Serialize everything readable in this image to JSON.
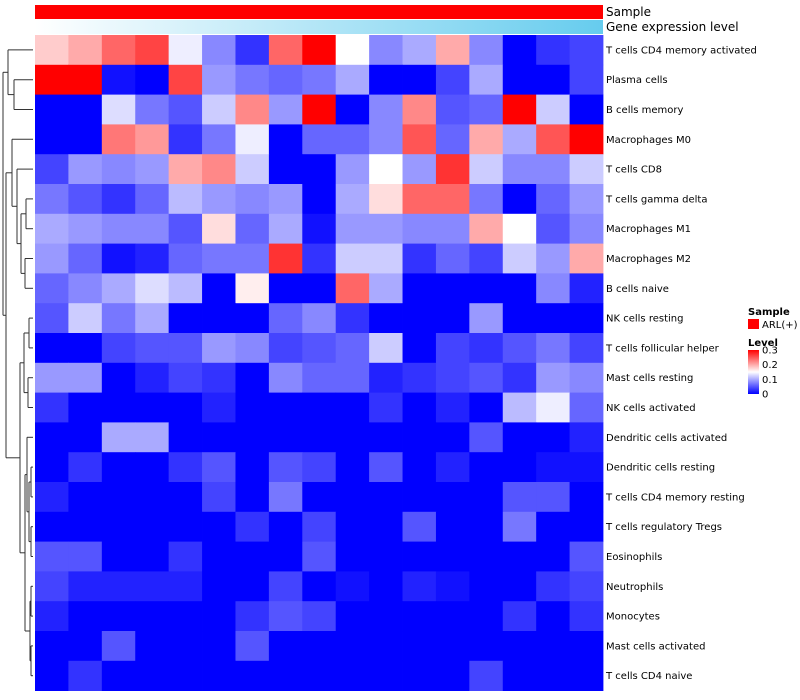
{
  "chart_data": {
    "type": "heatmap",
    "annotations": [
      {
        "name": "Sample",
        "kind": "categorical",
        "color": "#FF0000"
      },
      {
        "name": "Gene expression level",
        "kind": "gradient",
        "low_color": "#FFFFFF",
        "high_color": "#66CCEE"
      }
    ],
    "rows": [
      "T cells CD4 memory activated",
      "Plasma cells",
      "B cells memory",
      "Macrophages M0",
      "T cells CD8",
      "T cells gamma delta",
      "Macrophages M1",
      "Macrophages M2",
      "B cells naive",
      "NK cells resting",
      "T cells follicular helper",
      "Mast cells resting",
      "NK cells activated",
      "Dendritic cells activated",
      "Dendritic cells resting",
      "T cells CD4 memory resting",
      "T cells regulatory  Tregs",
      "Eosinophils",
      "Neutrophils",
      "Monocytes",
      "Mast cells activated",
      "T cells CD4 naive"
    ],
    "n_columns": 17,
    "values": [
      [
        0.18,
        0.2,
        0.24,
        0.26,
        0.14,
        0.08,
        0.03,
        0.24,
        0.3,
        0.15,
        0.08,
        0.1,
        0.2,
        0.08,
        0.0,
        0.03,
        0.04
      ],
      [
        0.3,
        0.3,
        0.01,
        0.0,
        0.26,
        0.09,
        0.07,
        0.06,
        0.07,
        0.1,
        0.0,
        0.0,
        0.04,
        0.1,
        0.0,
        0.0,
        0.04
      ],
      [
        0.0,
        0.0,
        0.13,
        0.07,
        0.05,
        0.12,
        0.22,
        0.09,
        0.3,
        0.0,
        0.08,
        0.22,
        0.05,
        0.06,
        0.3,
        0.12,
        0.0
      ],
      [
        0.0,
        0.0,
        0.23,
        0.21,
        0.03,
        0.07,
        0.14,
        0.0,
        0.06,
        0.06,
        0.08,
        0.25,
        0.06,
        0.2,
        0.1,
        0.25,
        0.3
      ],
      [
        0.04,
        0.09,
        0.08,
        0.09,
        0.2,
        0.22,
        0.12,
        0.0,
        0.0,
        0.09,
        0.15,
        0.09,
        0.27,
        0.12,
        0.08,
        0.08,
        0.12
      ],
      [
        0.07,
        0.05,
        0.03,
        0.06,
        0.11,
        0.09,
        0.08,
        0.09,
        0.0,
        0.1,
        0.17,
        0.24,
        0.24,
        0.07,
        0.0,
        0.06,
        0.09
      ],
      [
        0.1,
        0.09,
        0.08,
        0.08,
        0.05,
        0.17,
        0.06,
        0.1,
        0.01,
        0.09,
        0.09,
        0.08,
        0.08,
        0.2,
        0.15,
        0.05,
        0.08
      ],
      [
        0.09,
        0.06,
        0.01,
        0.02,
        0.06,
        0.07,
        0.07,
        0.27,
        0.03,
        0.12,
        0.12,
        0.03,
        0.06,
        0.04,
        0.12,
        0.09,
        0.2
      ],
      [
        0.06,
        0.08,
        0.1,
        0.13,
        0.11,
        0.0,
        0.16,
        0.0,
        0.0,
        0.24,
        0.1,
        0.0,
        0.0,
        0.0,
        0.0,
        0.08,
        0.02
      ],
      [
        0.05,
        0.12,
        0.07,
        0.1,
        0.0,
        0.0,
        0.0,
        0.06,
        0.08,
        0.03,
        0.0,
        0.0,
        0.0,
        0.09,
        0.0,
        0.0,
        0.0
      ],
      [
        0.0,
        0.0,
        0.04,
        0.05,
        0.05,
        0.09,
        0.08,
        0.04,
        0.05,
        0.06,
        0.12,
        0.0,
        0.04,
        0.03,
        0.05,
        0.07,
        0.04
      ],
      [
        0.09,
        0.09,
        0.0,
        0.02,
        0.04,
        0.03,
        0.0,
        0.08,
        0.06,
        0.06,
        0.02,
        0.03,
        0.04,
        0.05,
        0.03,
        0.09,
        0.08
      ],
      [
        0.03,
        0.0,
        0.0,
        0.0,
        0.0,
        0.02,
        0.0,
        0.0,
        0.0,
        0.0,
        0.03,
        0.0,
        0.02,
        0.0,
        0.11,
        0.14,
        0.06
      ],
      [
        0.0,
        0.0,
        0.1,
        0.1,
        0.0,
        0.0,
        0.0,
        0.0,
        0.0,
        0.0,
        0.0,
        0.0,
        0.0,
        0.05,
        0.0,
        0.0,
        0.02
      ],
      [
        0.0,
        0.03,
        0.0,
        0.0,
        0.03,
        0.05,
        0.0,
        0.05,
        0.04,
        0.0,
        0.05,
        0.0,
        0.02,
        0.0,
        0.0,
        0.01,
        0.01
      ],
      [
        0.02,
        0.0,
        0.0,
        0.0,
        0.0,
        0.04,
        0.0,
        0.07,
        0.0,
        0.0,
        0.0,
        0.0,
        0.0,
        0.0,
        0.05,
        0.05,
        0.0
      ],
      [
        0.0,
        0.0,
        0.0,
        0.0,
        0.0,
        0.0,
        0.03,
        0.0,
        0.04,
        0.0,
        0.0,
        0.05,
        0.0,
        0.0,
        0.07,
        0.0,
        0.0
      ],
      [
        0.05,
        0.05,
        0.0,
        0.0,
        0.03,
        0.0,
        0.0,
        0.0,
        0.05,
        0.0,
        0.0,
        0.0,
        0.0,
        0.0,
        0.0,
        0.0,
        0.05
      ],
      [
        0.04,
        0.02,
        0.02,
        0.02,
        0.02,
        0.0,
        0.0,
        0.04,
        0.0,
        0.01,
        0.0,
        0.02,
        0.01,
        0.0,
        0.0,
        0.03,
        0.04
      ],
      [
        0.02,
        0.0,
        0.0,
        0.0,
        0.0,
        0.0,
        0.03,
        0.05,
        0.04,
        0.0,
        0.0,
        0.0,
        0.0,
        0.0,
        0.03,
        0.0,
        0.03
      ],
      [
        0.0,
        0.0,
        0.05,
        0.0,
        0.0,
        0.0,
        0.05,
        0.0,
        0.0,
        0.0,
        0.0,
        0.0,
        0.0,
        0.0,
        0.0,
        0.0,
        0.0
      ],
      [
        0.0,
        0.03,
        0.0,
        0.0,
        0.0,
        0.0,
        0.0,
        0.0,
        0.0,
        0.0,
        0.0,
        0.0,
        0.0,
        0.04,
        0.0,
        0.0,
        0.0
      ]
    ],
    "color_scale": {
      "min": 0,
      "mid": 0.15,
      "max": 0.3,
      "low_color": "#0000FF",
      "mid_color": "#FFFFFF",
      "high_color": "#FF0000"
    },
    "legend": {
      "sample_title": "Sample",
      "sample_entry": "ARL(+)",
      "level_title": "Level",
      "ticks": [
        "0.3",
        "0.2",
        "0.1",
        "0"
      ],
      "tick_values": [
        0.3,
        0.2,
        0.1,
        0
      ]
    },
    "row_dendrogram": true
  }
}
